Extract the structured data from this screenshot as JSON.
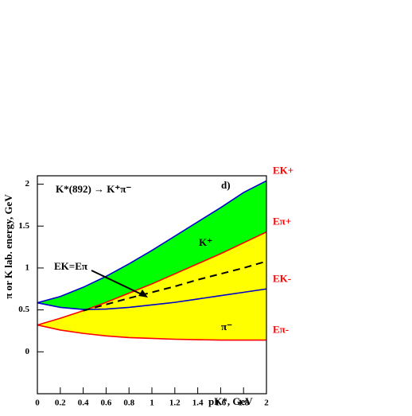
{
  "chart_data": {
    "type": "line",
    "title": "K*(892) → K⁺π⁻",
    "panel_label": "d)",
    "x_label": "pK*, GeV",
    "y_label": "π or K lab. energy, GeV",
    "annotations": {
      "k_plus": "K⁺",
      "pi_minus": "π⁻",
      "equal_energy": "EK=Eπ"
    },
    "x": [
      0,
      0.2,
      0.4,
      0.6,
      0.8,
      1.0,
      1.2,
      1.4,
      1.6,
      1.8,
      2.0
    ],
    "series": [
      {
        "name": "EK+",
        "color": "#0000cc",
        "values": [
          0.585,
          0.66,
          0.77,
          0.9,
          1.05,
          1.21,
          1.38,
          1.55,
          1.72,
          1.9,
          2.04
        ]
      },
      {
        "name": "Eπ+",
        "color": "#ff0000",
        "values": [
          0.32,
          0.4,
          0.49,
          0.59,
          0.7,
          0.81,
          0.93,
          1.05,
          1.17,
          1.3,
          1.43
        ]
      },
      {
        "name": "EK-",
        "color": "#0000cc",
        "values": [
          0.585,
          0.53,
          0.505,
          0.51,
          0.53,
          0.56,
          0.59,
          0.63,
          0.67,
          0.71,
          0.75
        ]
      },
      {
        "name": "Eπ-",
        "color": "#ff0000",
        "values": [
          0.32,
          0.26,
          0.22,
          0.19,
          0.17,
          0.16,
          0.15,
          0.145,
          0.14,
          0.14,
          0.14
        ]
      },
      {
        "name": "EK=Eπ",
        "color": "#000000",
        "dashed": true,
        "values": [
          null,
          null,
          0.49,
          0.565,
          0.64,
          0.71,
          0.78,
          0.86,
          0.93,
          1.0,
          1.08
        ]
      }
    ],
    "xlim": [
      0,
      2
    ],
    "xticks": [
      0,
      0.2,
      0.4,
      0.6,
      0.8,
      1,
      1.2,
      1.4,
      1.6,
      1.8,
      2
    ],
    "ylim": [
      -0.5,
      2.1
    ],
    "yticks": [
      0,
      0.5,
      1,
      1.5,
      2
    ]
  }
}
